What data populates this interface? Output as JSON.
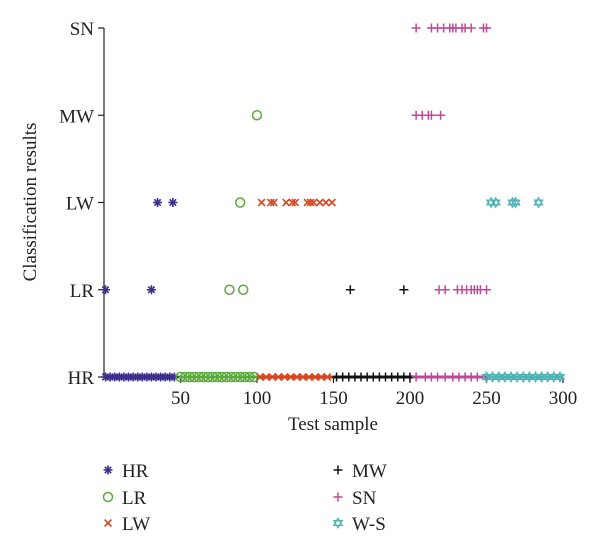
{
  "chart_data": {
    "type": "scatter",
    "xlabel": "Test sample",
    "ylabel": "Classification results",
    "xlim": [
      0,
      300
    ],
    "xticks": [
      50,
      100,
      150,
      200,
      250,
      300
    ],
    "categories": [
      "HR",
      "LR",
      "LW",
      "MW",
      "SN"
    ],
    "grid": false,
    "legend_position": "bottom",
    "series": [
      {
        "name": "HR",
        "marker": "asterisk",
        "color": "#3b2f8f",
        "points": [
          [
            1,
            "HR"
          ],
          [
            4,
            "HR"
          ],
          [
            7,
            "HR"
          ],
          [
            10,
            "HR"
          ],
          [
            13,
            "HR"
          ],
          [
            16,
            "HR"
          ],
          [
            19,
            "HR"
          ],
          [
            22,
            "HR"
          ],
          [
            25,
            "HR"
          ],
          [
            28,
            "HR"
          ],
          [
            31,
            "HR"
          ],
          [
            34,
            "HR"
          ],
          [
            37,
            "HR"
          ],
          [
            40,
            "HR"
          ],
          [
            43,
            "HR"
          ],
          [
            46,
            "HR"
          ],
          [
            1,
            "LR"
          ],
          [
            31,
            "LR"
          ],
          [
            35,
            "LW"
          ],
          [
            45,
            "LW"
          ]
        ]
      },
      {
        "name": "LR",
        "marker": "circle",
        "color": "#5aaa3c",
        "points": [
          [
            50,
            "HR"
          ],
          [
            53,
            "HR"
          ],
          [
            56,
            "HR"
          ],
          [
            59,
            "HR"
          ],
          [
            62,
            "HR"
          ],
          [
            65,
            "HR"
          ],
          [
            68,
            "HR"
          ],
          [
            71,
            "HR"
          ],
          [
            74,
            "HR"
          ],
          [
            77,
            "HR"
          ],
          [
            80,
            "HR"
          ],
          [
            83,
            "HR"
          ],
          [
            86,
            "HR"
          ],
          [
            89,
            "HR"
          ],
          [
            92,
            "HR"
          ],
          [
            95,
            "HR"
          ],
          [
            98,
            "HR"
          ],
          [
            82,
            "LR"
          ],
          [
            91,
            "LR"
          ],
          [
            89,
            "LW"
          ],
          [
            100,
            "MW"
          ]
        ]
      },
      {
        "name": "LW",
        "marker": "x",
        "color": "#d9441c",
        "points": [
          [
            102,
            "HR"
          ],
          [
            106,
            "HR"
          ],
          [
            110,
            "HR"
          ],
          [
            114,
            "HR"
          ],
          [
            118,
            "HR"
          ],
          [
            122,
            "HR"
          ],
          [
            126,
            "HR"
          ],
          [
            130,
            "HR"
          ],
          [
            134,
            "HR"
          ],
          [
            138,
            "HR"
          ],
          [
            142,
            "HR"
          ],
          [
            146,
            "HR"
          ],
          [
            103,
            "LW"
          ],
          [
            109,
            "LW"
          ],
          [
            111,
            "LW"
          ],
          [
            119,
            "LW"
          ],
          [
            123,
            "LW"
          ],
          [
            125,
            "LW"
          ],
          [
            133,
            "LW"
          ],
          [
            135,
            "LW"
          ],
          [
            137,
            "LW"
          ],
          [
            141,
            "LW"
          ],
          [
            145,
            "LW"
          ],
          [
            149,
            "LW"
          ]
        ]
      },
      {
        "name": "MW",
        "marker": "plus",
        "color": "#111111",
        "points": [
          [
            152,
            "HR"
          ],
          [
            156,
            "HR"
          ],
          [
            160,
            "HR"
          ],
          [
            164,
            "HR"
          ],
          [
            168,
            "HR"
          ],
          [
            172,
            "HR"
          ],
          [
            176,
            "HR"
          ],
          [
            180,
            "HR"
          ],
          [
            184,
            "HR"
          ],
          [
            188,
            "HR"
          ],
          [
            192,
            "HR"
          ],
          [
            196,
            "HR"
          ],
          [
            200,
            "HR"
          ],
          [
            161,
            "LR"
          ],
          [
            196,
            "LR"
          ]
        ]
      },
      {
        "name": "SN",
        "marker": "plus",
        "color": "#c0479a",
        "points": [
          [
            204,
            "HR"
          ],
          [
            210,
            "HR"
          ],
          [
            214,
            "HR"
          ],
          [
            218,
            "HR"
          ],
          [
            223,
            "HR"
          ],
          [
            228,
            "HR"
          ],
          [
            232,
            "HR"
          ],
          [
            236,
            "HR"
          ],
          [
            240,
            "HR"
          ],
          [
            244,
            "HR"
          ],
          [
            219,
            "LR"
          ],
          [
            223,
            "LR"
          ],
          [
            231,
            "LR"
          ],
          [
            234,
            "LR"
          ],
          [
            237,
            "LR"
          ],
          [
            240,
            "LR"
          ],
          [
            242,
            "LR"
          ],
          [
            244,
            "LR"
          ],
          [
            246,
            "LR"
          ],
          [
            250,
            "LR"
          ],
          [
            204,
            "MW"
          ],
          [
            208,
            "MW"
          ],
          [
            212,
            "MW"
          ],
          [
            214,
            "MW"
          ],
          [
            220,
            "MW"
          ],
          [
            204,
            "SN"
          ],
          [
            214,
            "SN"
          ],
          [
            218,
            "SN"
          ],
          [
            222,
            "SN"
          ],
          [
            226,
            "SN"
          ],
          [
            228,
            "SN"
          ],
          [
            230,
            "SN"
          ],
          [
            234,
            "SN"
          ],
          [
            236,
            "SN"
          ],
          [
            240,
            "SN"
          ],
          [
            248,
            "SN"
          ],
          [
            250,
            "SN"
          ]
        ]
      },
      {
        "name": "W-S",
        "marker": "star",
        "color": "#4fb3b5",
        "points": [
          [
            250,
            "HR"
          ],
          [
            254,
            "HR"
          ],
          [
            258,
            "HR"
          ],
          [
            262,
            "HR"
          ],
          [
            266,
            "HR"
          ],
          [
            270,
            "HR"
          ],
          [
            274,
            "HR"
          ],
          [
            278,
            "HR"
          ],
          [
            282,
            "HR"
          ],
          [
            286,
            "HR"
          ],
          [
            290,
            "HR"
          ],
          [
            294,
            "HR"
          ],
          [
            298,
            "HR"
          ],
          [
            253,
            "LW"
          ],
          [
            256,
            "LW"
          ],
          [
            267,
            "LW"
          ],
          [
            269,
            "LW"
          ],
          [
            284,
            "LW"
          ]
        ]
      }
    ]
  }
}
